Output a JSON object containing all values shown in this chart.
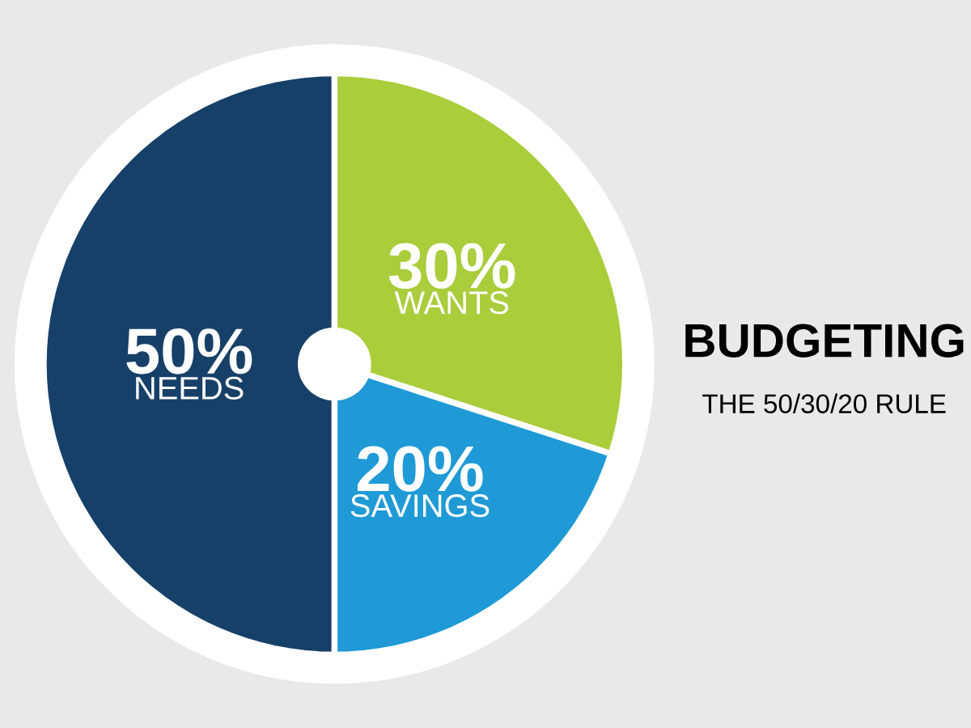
{
  "chart_data": {
    "type": "pie",
    "title": "BUDGETING",
    "subtitle": "THE 50/30/20 RULE",
    "categories": [
      "WANTS",
      "SAVINGS",
      "NEEDS"
    ],
    "values": [
      30,
      20,
      50
    ],
    "colors": [
      "#a9cd3b",
      "#1f9ad6",
      "#174069"
    ],
    "value_labels": [
      "30%",
      "20%",
      "50%"
    ]
  }
}
